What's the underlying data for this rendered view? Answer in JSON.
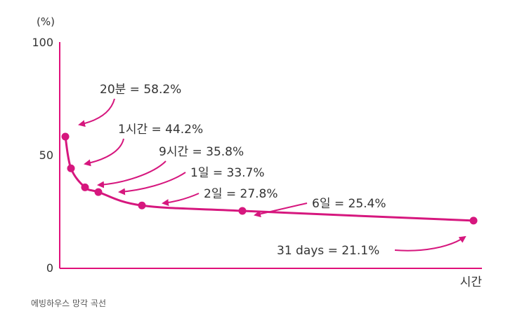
{
  "chart_data": {
    "type": "line",
    "title": "",
    "ylabel": "(%)",
    "xlabel": "시간",
    "ylim": [
      0,
      100
    ],
    "yticks": [
      0,
      50,
      100
    ],
    "grid": false,
    "series": [
      {
        "points": [
          {
            "label": "20분",
            "value": 58.2,
            "annotation": "20분 = 58.2%"
          },
          {
            "label": "1시간",
            "value": 44.2,
            "annotation": "1시간 = 44.2%"
          },
          {
            "label": "9시간",
            "value": 35.8,
            "annotation": "9시간 = 35.8%"
          },
          {
            "label": "1일",
            "value": 33.7,
            "annotation": "1일 = 33.7%"
          },
          {
            "label": "2일",
            "value": 27.8,
            "annotation": "2일 = 27.8%"
          },
          {
            "label": "6일",
            "value": 25.4,
            "annotation": "6일 = 25.4%"
          },
          {
            "label": "31 days",
            "value": 21.1,
            "annotation": "31 days = 21.1%"
          }
        ]
      }
    ],
    "colors": {
      "curve": "#d6177e",
      "axis": "#e0107a",
      "text": "#333333"
    }
  },
  "caption": "에빙하우스 망각 곡선"
}
